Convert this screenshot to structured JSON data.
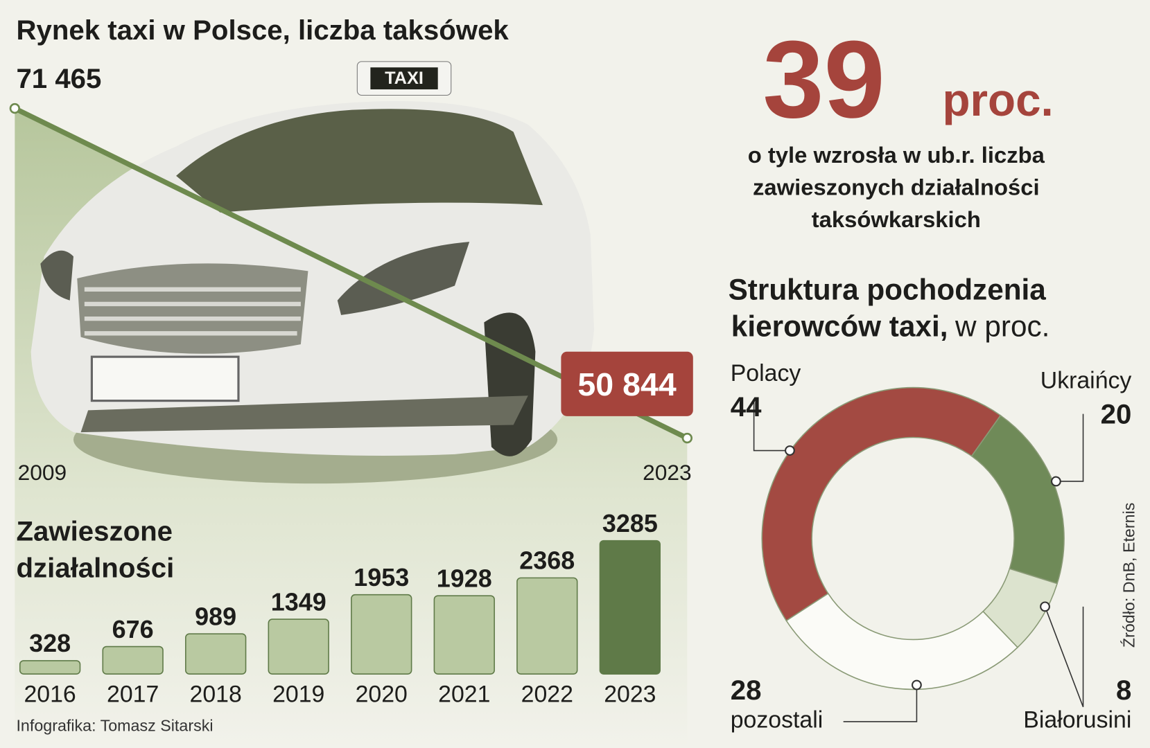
{
  "title": "Rynek taxi w Polsce, liczba taksówek",
  "car_sign": "TAXI",
  "highlight": {
    "value": "39",
    "unit": "proc.",
    "text": [
      "o tyle wzrosła w ub.r. liczba",
      "zawieszonych działalności",
      "taksówkarskich"
    ]
  },
  "credit": "Infografika: Tomasz Sitarski",
  "source": "Źródło: DnB, Eternis",
  "chart_data": [
    {
      "type": "line",
      "x": [
        "2009",
        "2023"
      ],
      "values": [
        71465,
        50844
      ],
      "value_labels": [
        "71 465",
        "50 844"
      ],
      "color": "#6e8a4e",
      "highlight_color": "#a5443c"
    },
    {
      "type": "bar",
      "title": [
        "Zawieszone",
        "działalności"
      ],
      "categories": [
        "2016",
        "2017",
        "2018",
        "2019",
        "2020",
        "2021",
        "2022",
        "2023"
      ],
      "values": [
        328,
        676,
        989,
        1349,
        1953,
        1928,
        2368,
        3285
      ],
      "colors": [
        "#b9c9a1",
        "#b9c9a1",
        "#b9c9a1",
        "#b9c9a1",
        "#b9c9a1",
        "#b9c9a1",
        "#b9c9a1",
        "#5f7a48"
      ]
    },
    {
      "type": "donut",
      "title": [
        "Struktura pochodzenia",
        "kierowców taxi,"
      ],
      "unit": "w proc.",
      "categories": [
        "Polacy",
        "Ukraińcy",
        "Białorusini",
        "pozostali"
      ],
      "values": [
        44,
        20,
        8,
        28
      ],
      "colors": [
        "#a34a42",
        "#6f8a58",
        "#dce3ce",
        "#fbfbf7"
      ]
    }
  ]
}
